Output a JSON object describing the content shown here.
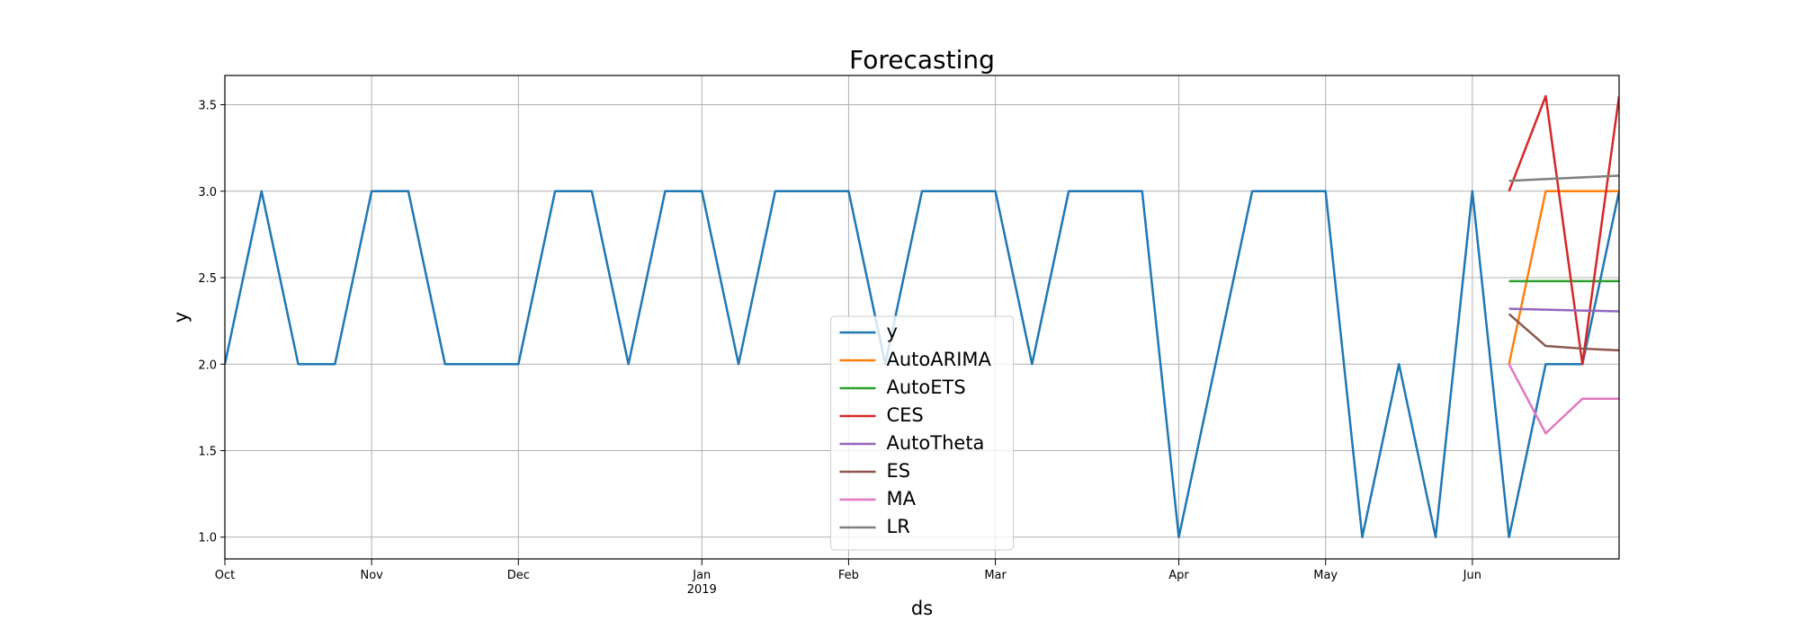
{
  "chart_data": {
    "type": "line",
    "title": "Forecasting",
    "xlabel": "ds",
    "ylabel": "y",
    "x": [
      0,
      1,
      2,
      3,
      4,
      5,
      6,
      7,
      8,
      9,
      10,
      11,
      12,
      13,
      14,
      15,
      16,
      17,
      18,
      19,
      20,
      21,
      22,
      23,
      24,
      25,
      26,
      27,
      28,
      29,
      30,
      31,
      32,
      33,
      34,
      35,
      36,
      37,
      38
    ],
    "series": [
      {
        "name": "y",
        "color": "#1f77b4",
        "values": [
          2,
          3,
          2,
          2,
          3,
          3,
          2,
          2,
          2,
          3,
          3,
          2,
          3,
          3,
          2,
          3,
          3,
          3,
          2,
          3,
          3,
          3,
          2,
          3,
          3,
          3,
          1,
          2,
          3,
          3,
          3,
          1,
          2,
          1,
          3,
          1,
          2,
          2,
          3
        ]
      },
      {
        "name": "AutoARIMA",
        "color": "#ff7f0e",
        "x": [
          35,
          36,
          37,
          38
        ],
        "values": [
          2,
          3,
          3,
          3
        ]
      },
      {
        "name": "AutoETS",
        "color": "#2ca02c",
        "x": [
          35,
          36,
          37,
          38
        ],
        "values": [
          2.48,
          2.48,
          2.48,
          2.48
        ]
      },
      {
        "name": "CES",
        "color": "#d62728",
        "x": [
          35,
          36,
          37,
          38
        ],
        "values": [
          3,
          3.55,
          2,
          3.55
        ]
      },
      {
        "name": "AutoTheta",
        "color": "#9467bd",
        "x": [
          35,
          36,
          37,
          38
        ],
        "values": [
          2.32,
          2.315,
          2.31,
          2.305
        ]
      },
      {
        "name": "ES",
        "color": "#8c564b",
        "x": [
          35,
          36,
          37,
          38
        ],
        "values": [
          2.29,
          2.105,
          2.09,
          2.08
        ]
      },
      {
        "name": "MA",
        "color": "#e377c2",
        "x": [
          35,
          36,
          37,
          38
        ],
        "values": [
          2,
          1.6,
          1.8,
          1.8
        ]
      },
      {
        "name": "LR",
        "color": "#7f7f7f",
        "x": [
          35,
          36,
          37,
          38
        ],
        "values": [
          3.06,
          3.07,
          3.08,
          3.09
        ]
      }
    ],
    "xlim": [
      0,
      38
    ],
    "xticks": [
      {
        "value": 0,
        "label": "Oct"
      },
      {
        "value": 4,
        "label": "Nov"
      },
      {
        "value": 8,
        "label": "Dec"
      },
      {
        "value": 13,
        "label": "Jan\n2019"
      },
      {
        "value": 17,
        "label": "Feb"
      },
      {
        "value": 21,
        "label": "Mar"
      },
      {
        "value": 26,
        "label": "Apr"
      },
      {
        "value": 30,
        "label": "May"
      },
      {
        "value": 34,
        "label": "Jun"
      }
    ],
    "ylim": [
      0.874,
      3.669
    ],
    "yticks": [
      {
        "value": 1,
        "label": "1.0"
      },
      {
        "value": 1.5,
        "label": "1.5"
      },
      {
        "value": 2,
        "label": "2.0"
      },
      {
        "value": 2.5,
        "label": "2.5"
      },
      {
        "value": 3,
        "label": "3.0"
      },
      {
        "value": 3.5,
        "label": "3.5"
      }
    ],
    "grid": true,
    "legend": "lower center"
  }
}
